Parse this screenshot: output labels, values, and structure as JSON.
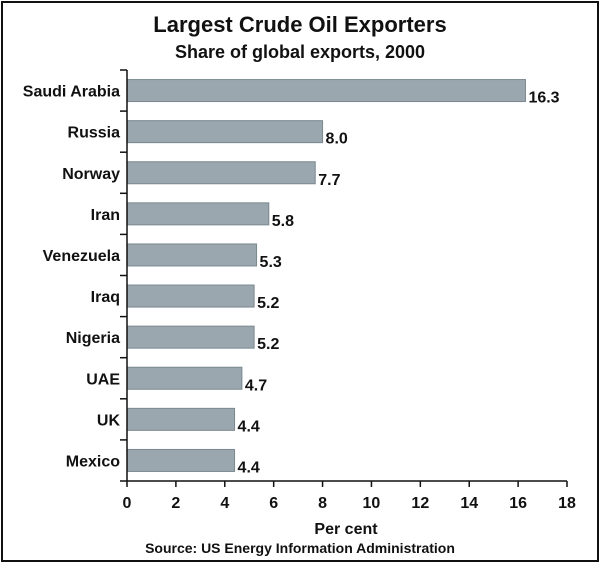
{
  "chart_data": {
    "type": "bar",
    "orientation": "horizontal",
    "title": "Largest Crude Oil Exporters",
    "subtitle": "Share of global exports, 2000",
    "categories": [
      "Saudi Arabia",
      "Russia",
      "Norway",
      "Iran",
      "Venezuela",
      "Iraq",
      "Nigeria",
      "UAE",
      "UK",
      "Mexico"
    ],
    "values": [
      16.3,
      8.0,
      7.7,
      5.8,
      5.3,
      5.2,
      5.2,
      4.7,
      4.4,
      4.4
    ],
    "value_labels": [
      "16.3",
      "8.0",
      "7.7",
      "5.8",
      "5.3",
      "5.2",
      "5.2",
      "4.7",
      "4.4",
      "4.4"
    ],
    "xlabel": "Per cent",
    "ylabel": "",
    "xlim": [
      0,
      18
    ],
    "xticks": [
      0,
      2,
      4,
      6,
      8,
      10,
      12,
      14,
      16,
      18
    ],
    "grid": false,
    "source": "Source: US Energy Information Administration",
    "bar_color": "#9aa7ae",
    "bar_edge_color": "#7a8890"
  }
}
